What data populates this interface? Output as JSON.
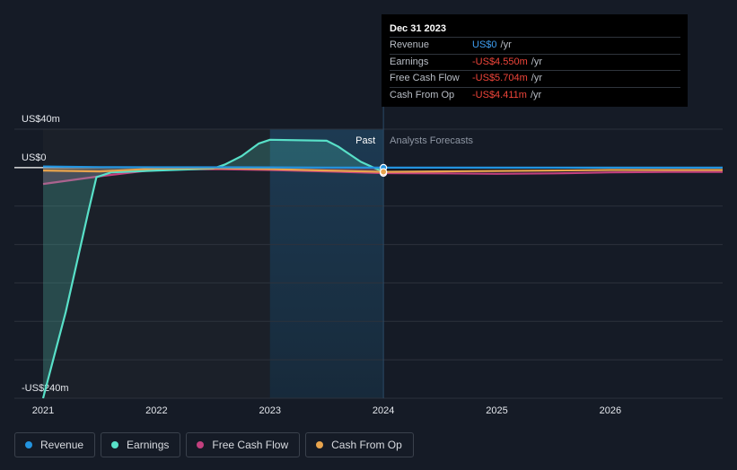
{
  "tooltip": {
    "date": "Dec 31 2023",
    "rows": [
      {
        "label": "Revenue",
        "value": "US$0",
        "unit": "/yr",
        "sign": "pos"
      },
      {
        "label": "Earnings",
        "value": "-US$4.550m",
        "unit": "/yr",
        "sign": "neg"
      },
      {
        "label": "Free Cash Flow",
        "value": "-US$5.704m",
        "unit": "/yr",
        "sign": "neg"
      },
      {
        "label": "Cash From Op",
        "value": "-US$4.411m",
        "unit": "/yr",
        "sign": "neg"
      }
    ]
  },
  "labels": {
    "past": "Past",
    "forecast": "Analysts Forecasts"
  },
  "legend": [
    {
      "label": "Revenue",
      "color": "#2394df"
    },
    {
      "label": "Earnings",
      "color": "#58e0c8"
    },
    {
      "label": "Free Cash Flow",
      "color": "#c2407e"
    },
    {
      "label": "Cash From Op",
      "color": "#e8a44d"
    }
  ],
  "colors": {
    "background": "#151b26",
    "past_shade": "#1b2029",
    "forecast_shade": "#1a3246",
    "grid": "#2c323c"
  },
  "chart_data": {
    "type": "line",
    "title": "",
    "xlabel": "",
    "ylabel": "",
    "ylim": [
      -240,
      40
    ],
    "xlim": [
      2021,
      2026.99
    ],
    "y_tick_labels": [
      "US$40m",
      "US$0",
      "-US$240m"
    ],
    "y_tick_values": [
      40,
      0,
      -240
    ],
    "grid_y": [
      40,
      0,
      -40,
      -80,
      -120,
      -160,
      -200,
      -240
    ],
    "x_ticks": [
      2021,
      2022,
      2023,
      2024,
      2025,
      2026
    ],
    "x_tick_labels": [
      "2021",
      "2022",
      "2023",
      "2024",
      "2025",
      "2026"
    ],
    "past_forecast_divider": 2024.0,
    "forecast_shade_start": 2023.0,
    "series": [
      {
        "name": "Revenue",
        "color": "#2394df",
        "x": [
          2021.0,
          2021.5,
          2022.0,
          2022.5,
          2023.0,
          2023.5,
          2024.0,
          2024.5,
          2025.0,
          2025.5,
          2026.0,
          2026.5,
          2026.99
        ],
        "values": [
          1.2,
          0.5,
          0.3,
          0.3,
          0.2,
          0.1,
          0,
          0,
          0,
          0,
          0,
          0,
          0
        ]
      },
      {
        "name": "Earnings",
        "color": "#58e0c8",
        "x": [
          2021.0,
          2021.2,
          2021.4,
          2021.47,
          2021.6,
          2022.0,
          2022.5,
          2022.6,
          2022.75,
          2022.9,
          2023.0,
          2023.5,
          2023.6,
          2023.8,
          2024.0
        ],
        "values": [
          -240,
          -150,
          -45,
          -10,
          -5,
          -3,
          -1,
          3,
          12,
          25,
          29,
          28,
          22,
          6,
          -4.55
        ]
      },
      {
        "name": "Free Cash Flow",
        "color": "#c2407e",
        "x": [
          2021.0,
          2021.5,
          2022.0,
          2022.5,
          2023.0,
          2023.5,
          2024.0,
          2024.5,
          2025.0,
          2025.5,
          2026.0,
          2026.5,
          2026.99
        ],
        "values": [
          -17,
          -9,
          -2,
          -1.5,
          -2.5,
          -4,
          -5.7,
          -6,
          -6.5,
          -6,
          -5,
          -4.5,
          -4.5
        ]
      },
      {
        "name": "Cash From Op",
        "color": "#e8a44d",
        "x": [
          2021.0,
          2021.5,
          2022.0,
          2022.5,
          2023.0,
          2023.5,
          2024.0,
          2024.5,
          2025.0,
          2025.5,
          2026.0,
          2026.5,
          2026.99
        ],
        "values": [
          -3,
          -4,
          -1,
          -0.5,
          -1.5,
          -3,
          -4.4,
          -4,
          -3.5,
          -3,
          -2.5,
          -2.5,
          -2.5
        ]
      }
    ]
  }
}
